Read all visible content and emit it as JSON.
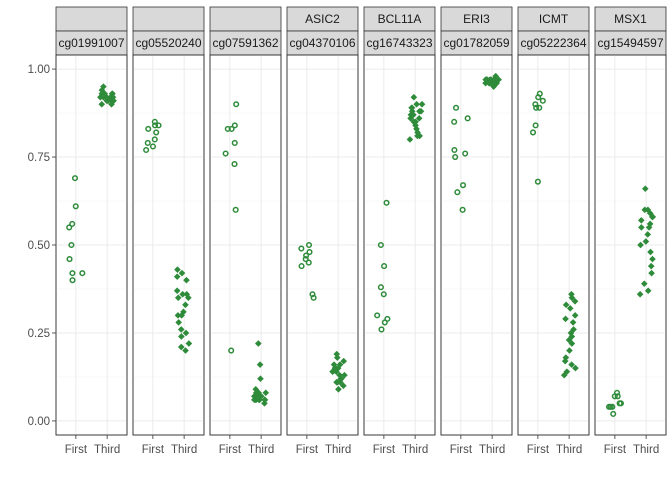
{
  "chart_data": {
    "type": "scatter",
    "facet_layout": "two-row strip: gene on top, probe below",
    "y_ticks": [
      0.0,
      0.25,
      0.5,
      0.75,
      1.0
    ],
    "y_tick_labels": [
      "0.00",
      "0.25",
      "0.50",
      "0.75",
      "1.00"
    ],
    "ylim": [
      -0.04,
      1.04
    ],
    "x_categories": [
      "First",
      "Third"
    ],
    "marker_color": "#2e8b3a",
    "marker_shapes": {
      "First": "open-circle",
      "Third": "filled-diamond"
    },
    "grid": true,
    "legend": "none",
    "panels": [
      {
        "gene": "",
        "probe": "cg01991007",
        "First": [
          0.69,
          0.61,
          0.56,
          0.55,
          0.5,
          0.46,
          0.42,
          0.42,
          0.4
        ],
        "Third": [
          0.95,
          0.93,
          0.92,
          0.91,
          0.9,
          0.92,
          0.93,
          0.92,
          0.91,
          0.92,
          0.93,
          0.92,
          0.93,
          0.91,
          0.92,
          0.94,
          0.93,
          0.91,
          0.9,
          0.92
        ]
      },
      {
        "gene": "",
        "probe": "cg05520240",
        "First": [
          0.85,
          0.84,
          0.84,
          0.83,
          0.82,
          0.8,
          0.79,
          0.78,
          0.77
        ],
        "Third": [
          0.43,
          0.42,
          0.41,
          0.4,
          0.37,
          0.36,
          0.36,
          0.35,
          0.33,
          0.31,
          0.3,
          0.28,
          0.26,
          0.24,
          0.22,
          0.2,
          0.21,
          0.25,
          0.3,
          0.35
        ]
      },
      {
        "gene": "",
        "probe": "cg07591362",
        "First": [
          0.9,
          0.84,
          0.83,
          0.83,
          0.79,
          0.76,
          0.73,
          0.6,
          0.2
        ],
        "Third": [
          0.22,
          0.16,
          0.12,
          0.09,
          0.08,
          0.08,
          0.07,
          0.07,
          0.06,
          0.06,
          0.07,
          0.06,
          0.06,
          0.07,
          0.06,
          0.05,
          0.07,
          0.06,
          0.08,
          0.06
        ]
      },
      {
        "gene": "ASIC2",
        "probe": "cg04370106",
        "First": [
          0.5,
          0.49,
          0.48,
          0.47,
          0.46,
          0.45,
          0.44,
          0.36,
          0.35
        ],
        "Third": [
          0.19,
          0.18,
          0.17,
          0.16,
          0.15,
          0.14,
          0.14,
          0.13,
          0.12,
          0.11,
          0.11,
          0.1,
          0.09,
          0.15,
          0.16,
          0.14,
          0.13,
          0.12,
          0.15,
          0.11
        ]
      },
      {
        "gene": "BCL11A",
        "probe": "cg16743323",
        "First": [
          0.62,
          0.5,
          0.44,
          0.38,
          0.36,
          0.3,
          0.29,
          0.28,
          0.26
        ],
        "Third": [
          0.92,
          0.9,
          0.89,
          0.89,
          0.88,
          0.88,
          0.87,
          0.87,
          0.86,
          0.86,
          0.85,
          0.84,
          0.83,
          0.82,
          0.81,
          0.8,
          0.81,
          0.85,
          0.88,
          0.9
        ]
      },
      {
        "gene": "ERI3",
        "probe": "cg01782059",
        "First": [
          0.89,
          0.86,
          0.85,
          0.77,
          0.76,
          0.75,
          0.67,
          0.65,
          0.6
        ],
        "Third": [
          0.97,
          0.97,
          0.96,
          0.96,
          0.96,
          0.97,
          0.96,
          0.96,
          0.97,
          0.96,
          0.96,
          0.97,
          0.96,
          0.97,
          0.96,
          0.97,
          0.96,
          0.95,
          0.97,
          0.98
        ]
      },
      {
        "gene": "ICMT",
        "probe": "cg05222364",
        "First": [
          0.93,
          0.92,
          0.91,
          0.9,
          0.89,
          0.89,
          0.84,
          0.82,
          0.68
        ],
        "Third": [
          0.36,
          0.35,
          0.34,
          0.32,
          0.3,
          0.29,
          0.28,
          0.26,
          0.25,
          0.23,
          0.22,
          0.2,
          0.18,
          0.17,
          0.16,
          0.15,
          0.14,
          0.13,
          0.24,
          0.33
        ]
      },
      {
        "gene": "MSX1",
        "probe": "cg15494597",
        "First": [
          0.08,
          0.07,
          0.07,
          0.05,
          0.05,
          0.04,
          0.04,
          0.04,
          0.02
        ],
        "Third": [
          0.66,
          0.6,
          0.59,
          0.58,
          0.57,
          0.56,
          0.55,
          0.53,
          0.51,
          0.5,
          0.48,
          0.46,
          0.44,
          0.42,
          0.39,
          0.37,
          0.36,
          0.58,
          0.55,
          0.6
        ]
      }
    ]
  }
}
